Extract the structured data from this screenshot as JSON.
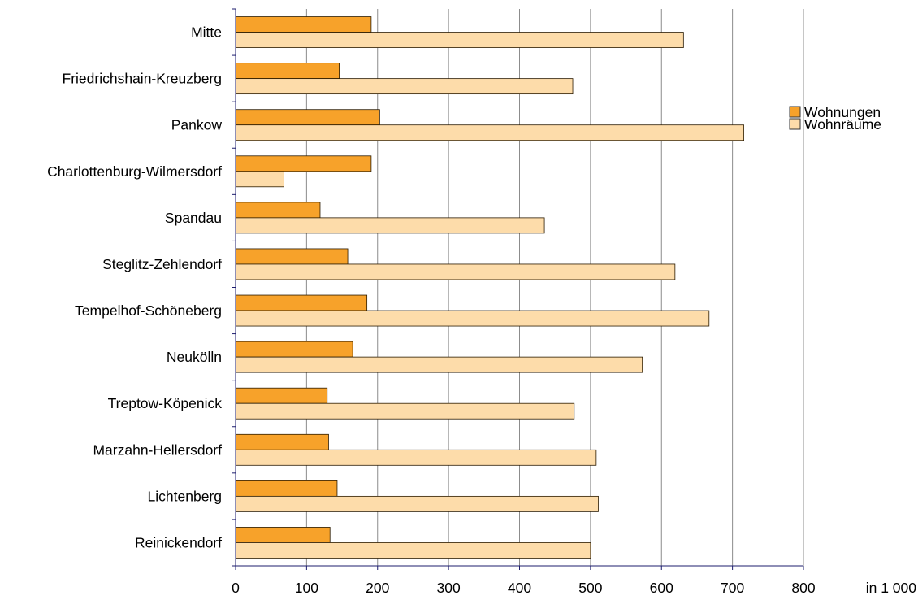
{
  "chart_data": {
    "type": "bar",
    "orientation": "horizontal",
    "categories": [
      "Mitte",
      "Friedrichshain-Kreuzberg",
      "Pankow",
      "Charlottenburg-Wilmersdorf",
      "Spandau",
      "Steglitz-Zehlendorf",
      "Tempelhof-Schöneberg",
      "Neukölln",
      "Treptow-Köpenick",
      "Marzahn-Hellersdorf",
      "Lichtenberg",
      "Reinickendorf"
    ],
    "series": [
      {
        "name": "Wohnungen",
        "color": "#f7a22a",
        "values": [
          191,
          146,
          203,
          191,
          119,
          158,
          185,
          165,
          129,
          131,
          143,
          133
        ]
      },
      {
        "name": "Wohnräume",
        "color": "#fddcaa",
        "values": [
          631,
          475,
          716,
          68,
          435,
          619,
          667,
          573,
          477,
          508,
          511,
          500
        ]
      }
    ],
    "xlim": [
      0,
      800
    ],
    "xticks": [
      "0",
      "100",
      "200",
      "300",
      "400",
      "500",
      "600",
      "700",
      "800"
    ],
    "xunit": "in 1 000",
    "grid": "vertical",
    "legend_position": "right"
  }
}
